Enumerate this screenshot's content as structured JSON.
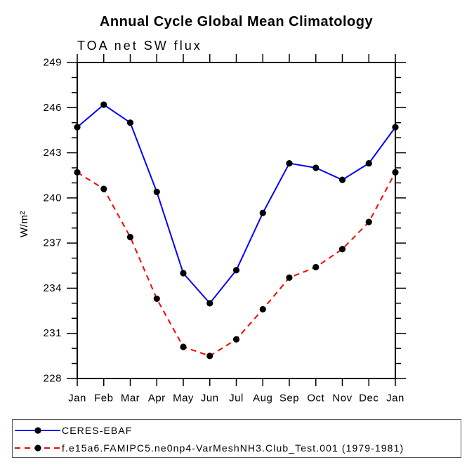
{
  "page": {
    "background": "#ffffff",
    "text_color": "#000000"
  },
  "chart_data": {
    "type": "line",
    "title": "Annual Cycle Global Mean Climatology",
    "subtitle": "TOA net SW flux",
    "xlabel": "",
    "ylabel": "W/m²",
    "categories": [
      "Jan",
      "Feb",
      "Mar",
      "Apr",
      "May",
      "Jun",
      "Jul",
      "Aug",
      "Sep",
      "Oct",
      "Nov",
      "Dec",
      "Jan"
    ],
    "ylim": [
      228,
      249
    ],
    "ytick_major_step": 3,
    "ytick_minor_step": 1,
    "ytick_labels": [
      "228",
      "231",
      "234",
      "237",
      "240",
      "243",
      "246",
      "249"
    ],
    "grid": false,
    "axis_color": "#000000",
    "legend_position": "bottom-left-box",
    "series": [
      {
        "name": "CERES-EBAF",
        "color": "#0000ff",
        "line_style": "solid",
        "marker": "filled-circle",
        "marker_color": "#000000",
        "values": [
          244.7,
          246.2,
          245.0,
          240.4,
          235.0,
          233.0,
          235.2,
          239.0,
          242.3,
          242.0,
          241.2,
          242.3,
          244.7
        ]
      },
      {
        "name": "f.e15a6.FAMIPC5.ne0np4-VarMeshNH3.Club_Test.001 (1979-1981)",
        "color": "#ff0000",
        "line_style": "dashed",
        "marker": "filled-circle",
        "marker_color": "#000000",
        "values": [
          241.7,
          240.6,
          237.4,
          233.3,
          230.1,
          229.5,
          230.6,
          232.6,
          234.7,
          235.4,
          236.6,
          238.4,
          241.7
        ]
      }
    ]
  }
}
